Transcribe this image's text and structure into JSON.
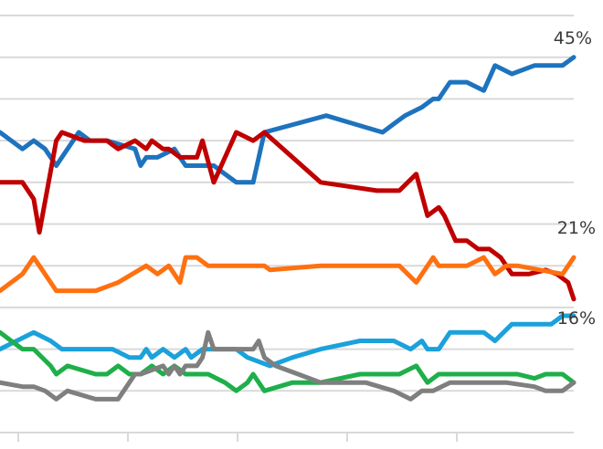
{
  "chart_data": {
    "type": "line",
    "title": "",
    "xlabel": "",
    "ylabel": "",
    "ylim": [
      0,
      50
    ],
    "grid": true,
    "legend": "none",
    "end_labels": [
      "45%",
      "21%",
      "16%"
    ],
    "series": [
      {
        "color": "#1E73BE",
        "end_label_index": 0,
        "points": [
          [
            0,
            36
          ],
          [
            4,
            34
          ],
          [
            6,
            35
          ],
          [
            8,
            34
          ],
          [
            10,
            32
          ],
          [
            14,
            36
          ],
          [
            16,
            35
          ],
          [
            19,
            35
          ],
          [
            24,
            34
          ],
          [
            25,
            32
          ],
          [
            26,
            33
          ],
          [
            28,
            33
          ],
          [
            31,
            34
          ],
          [
            32,
            33
          ],
          [
            33,
            32
          ],
          [
            38,
            32
          ],
          [
            40,
            31
          ],
          [
            42,
            30
          ],
          [
            45,
            30
          ],
          [
            47,
            36
          ],
          [
            58,
            38
          ],
          [
            68,
            36
          ],
          [
            70,
            37
          ],
          [
            72,
            38
          ],
          [
            75,
            39
          ],
          [
            77,
            40
          ],
          [
            78,
            40
          ],
          [
            80,
            42
          ],
          [
            83,
            42
          ],
          [
            86,
            41
          ],
          [
            88,
            44
          ],
          [
            91,
            43
          ],
          [
            95,
            44
          ],
          [
            97,
            44
          ],
          [
            100,
            44
          ],
          [
            102,
            45
          ]
        ]
      },
      {
        "color": "#C00000",
        "end_label_index": 2,
        "points": [
          [
            0,
            30
          ],
          [
            4,
            30
          ],
          [
            6,
            28
          ],
          [
            7,
            24
          ],
          [
            10,
            35
          ],
          [
            11,
            36
          ],
          [
            13,
            35.5
          ],
          [
            15,
            35
          ],
          [
            18,
            35
          ],
          [
            19,
            35
          ],
          [
            21,
            34
          ],
          [
            24,
            35
          ],
          [
            26,
            34
          ],
          [
            27,
            35
          ],
          [
            29,
            34
          ],
          [
            30,
            34
          ],
          [
            32,
            33
          ],
          [
            35,
            33
          ],
          [
            36,
            35
          ],
          [
            38,
            30
          ],
          [
            42,
            36
          ],
          [
            45,
            35
          ],
          [
            47,
            36
          ],
          [
            57,
            30
          ],
          [
            67,
            29
          ],
          [
            71,
            29
          ],
          [
            74,
            31
          ],
          [
            76,
            26
          ],
          [
            78,
            27
          ],
          [
            79,
            26
          ],
          [
            81,
            23
          ],
          [
            83,
            23
          ],
          [
            85,
            22
          ],
          [
            87,
            22
          ],
          [
            89,
            21
          ],
          [
            91,
            19
          ],
          [
            94,
            19
          ],
          [
            97,
            19.5
          ],
          [
            99,
            19
          ],
          [
            101,
            18
          ],
          [
            102,
            16
          ]
        ]
      },
      {
        "color": "#FF7010",
        "end_label_index": 1,
        "points": [
          [
            0,
            17
          ],
          [
            4,
            19
          ],
          [
            6,
            21
          ],
          [
            7,
            20
          ],
          [
            10,
            17
          ],
          [
            17,
            17
          ],
          [
            21,
            18
          ],
          [
            26,
            20
          ],
          [
            28,
            19
          ],
          [
            30,
            20
          ],
          [
            31,
            19
          ],
          [
            32,
            18
          ],
          [
            33,
            21
          ],
          [
            35,
            21
          ],
          [
            37,
            20
          ],
          [
            47,
            20
          ],
          [
            48,
            19.5
          ],
          [
            57,
            20
          ],
          [
            71,
            20
          ],
          [
            74,
            18
          ],
          [
            77,
            21
          ],
          [
            78,
            20
          ],
          [
            83,
            20
          ],
          [
            86,
            21
          ],
          [
            88,
            19
          ],
          [
            89,
            19.5
          ],
          [
            90,
            20
          ],
          [
            92,
            20
          ],
          [
            96,
            19.5
          ],
          [
            100,
            19
          ],
          [
            102,
            21
          ]
        ]
      },
      {
        "color": "#1BA1DB",
        "points": [
          [
            0,
            10
          ],
          [
            6,
            12
          ],
          [
            9,
            11
          ],
          [
            11,
            10
          ],
          [
            20,
            10
          ],
          [
            23,
            9
          ],
          [
            25,
            9
          ],
          [
            26,
            10
          ],
          [
            27,
            9
          ],
          [
            29,
            10
          ],
          [
            31,
            9
          ],
          [
            33,
            10
          ],
          [
            34,
            9
          ],
          [
            36,
            10
          ],
          [
            38,
            10
          ],
          [
            42,
            10
          ],
          [
            44,
            9
          ],
          [
            48,
            8
          ],
          [
            52,
            9
          ],
          [
            57,
            10
          ],
          [
            64,
            11
          ],
          [
            70,
            11
          ],
          [
            73,
            10
          ],
          [
            75,
            11
          ],
          [
            76,
            10
          ],
          [
            78,
            10
          ],
          [
            80,
            12
          ],
          [
            86,
            12
          ],
          [
            88,
            11
          ],
          [
            91,
            13
          ],
          [
            96,
            13
          ],
          [
            98,
            13
          ],
          [
            100,
            14
          ],
          [
            102,
            14
          ]
        ]
      },
      {
        "color": "#1EAF4A",
        "points": [
          [
            0,
            12
          ],
          [
            2,
            11
          ],
          [
            4,
            10
          ],
          [
            6,
            10
          ],
          [
            9,
            8
          ],
          [
            10,
            7
          ],
          [
            12,
            8
          ],
          [
            17,
            7
          ],
          [
            19,
            7
          ],
          [
            21,
            8
          ],
          [
            23,
            7
          ],
          [
            25,
            7
          ],
          [
            27,
            8
          ],
          [
            29,
            7
          ],
          [
            31,
            8
          ],
          [
            33,
            7
          ],
          [
            37,
            7
          ],
          [
            40,
            6
          ],
          [
            42,
            5
          ],
          [
            44,
            6
          ],
          [
            45,
            7
          ],
          [
            47,
            5
          ],
          [
            52,
            6
          ],
          [
            57,
            6
          ],
          [
            64,
            7
          ],
          [
            71,
            7
          ],
          [
            74,
            8
          ],
          [
            76,
            6
          ],
          [
            78,
            7
          ],
          [
            92,
            7
          ],
          [
            95,
            6.5
          ],
          [
            97,
            7
          ],
          [
            100,
            7
          ],
          [
            102,
            6
          ]
        ]
      },
      {
        "color": "#7F7F7F",
        "points": [
          [
            0,
            6
          ],
          [
            4,
            5.5
          ],
          [
            6,
            5.5
          ],
          [
            8,
            5
          ],
          [
            10,
            4
          ],
          [
            12,
            5
          ],
          [
            17,
            4
          ],
          [
            21,
            4
          ],
          [
            23,
            6
          ],
          [
            24,
            7
          ],
          [
            25,
            7
          ],
          [
            29,
            8
          ],
          [
            30,
            7
          ],
          [
            31,
            8
          ],
          [
            32,
            7
          ],
          [
            33,
            8
          ],
          [
            35,
            8
          ],
          [
            36,
            9
          ],
          [
            37,
            12
          ],
          [
            38,
            10
          ],
          [
            39,
            10
          ],
          [
            45,
            10
          ],
          [
            46,
            11
          ],
          [
            47,
            9
          ],
          [
            49,
            8
          ],
          [
            53,
            7
          ],
          [
            57,
            6
          ],
          [
            61,
            6
          ],
          [
            65,
            6
          ],
          [
            70,
            5
          ],
          [
            73,
            4
          ],
          [
            75,
            5
          ],
          [
            77,
            5
          ],
          [
            80,
            6
          ],
          [
            85,
            6
          ],
          [
            90,
            6
          ],
          [
            95,
            5.5
          ],
          [
            97,
            5
          ],
          [
            100,
            5
          ],
          [
            102,
            6
          ]
        ]
      }
    ]
  }
}
